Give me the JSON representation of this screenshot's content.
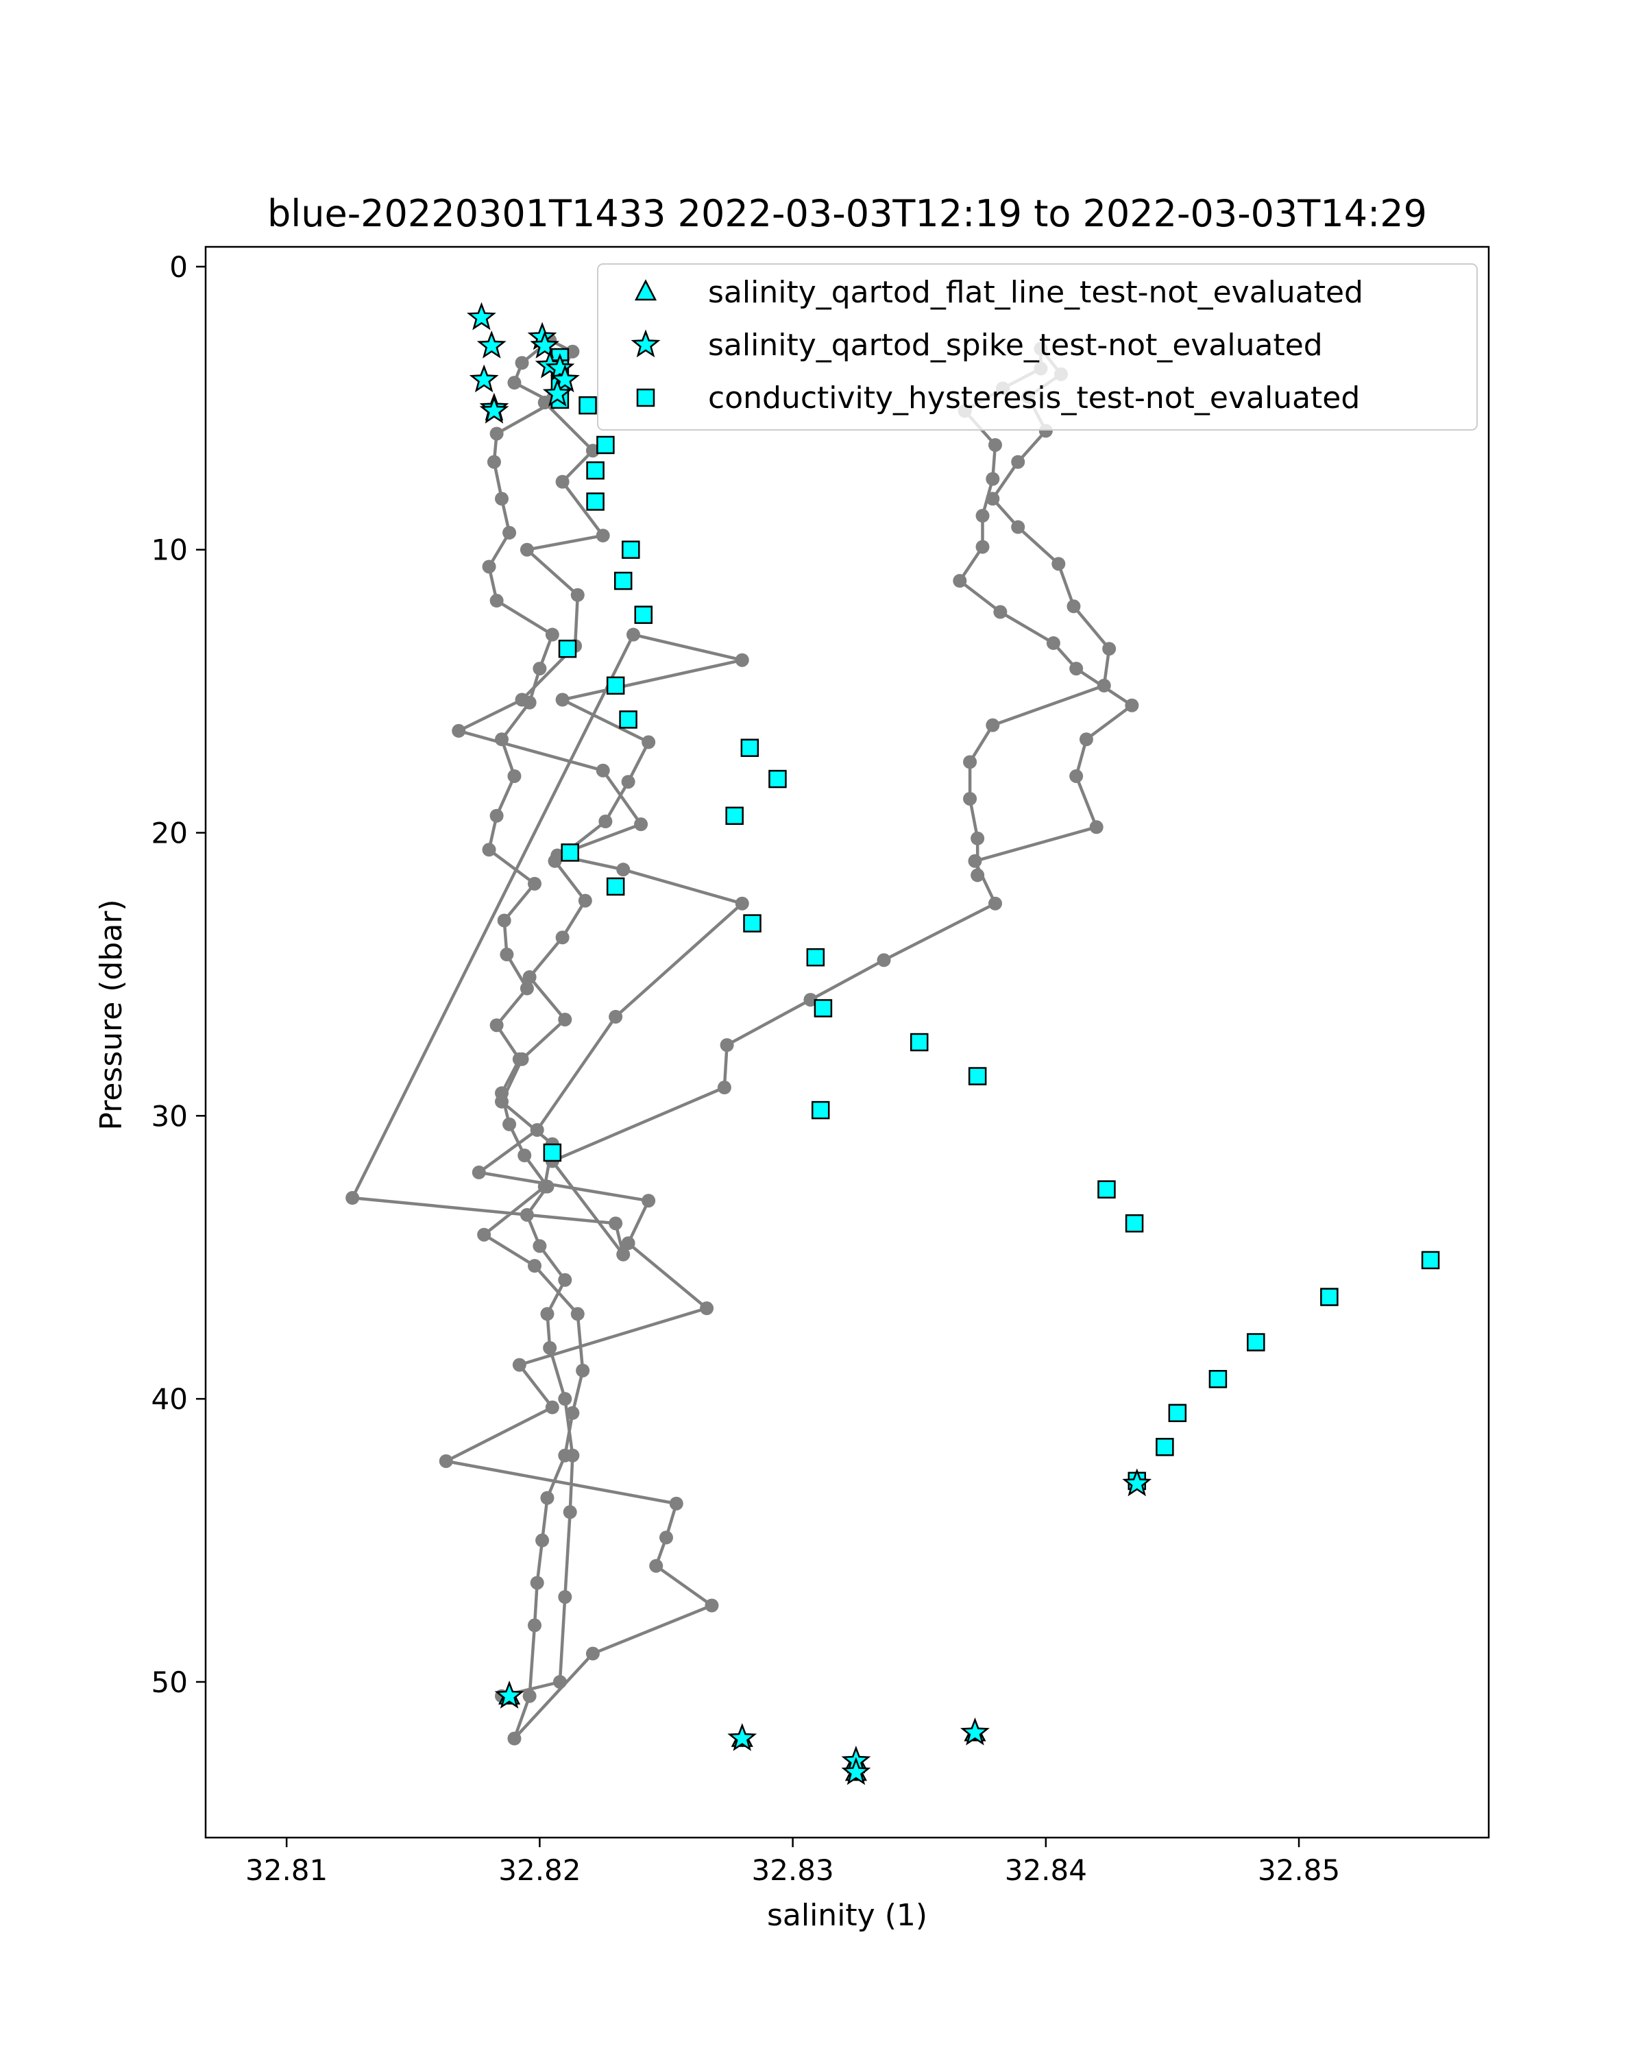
{
  "chart_data": {
    "type": "scatter",
    "title": "blue-20220301T1433 2022-03-03T12:19 to 2022-03-03T14:29",
    "xlabel": "salinity (1)",
    "ylabel": "Pressure (dbar)",
    "xlim": [
      32.8068,
      32.8575
    ],
    "ylim": [
      55.5,
      -0.7
    ],
    "y_inverted": true,
    "grid": false,
    "legend_position": "top-right",
    "colors": {
      "line": "#808080",
      "marker_fill": "#00ffff",
      "marker_edge": "#000000"
    },
    "xticks": [
      32.81,
      32.82,
      32.83,
      32.84,
      32.85
    ],
    "xtick_labels": [
      "32.81",
      "32.82",
      "32.83",
      "32.84",
      "32.85"
    ],
    "yticks": [
      0,
      10,
      20,
      30,
      40,
      50
    ],
    "ytick_labels": [
      "0",
      "10",
      "20",
      "30",
      "40",
      "50"
    ],
    "profile": {
      "x": [
        32.8185,
        32.8208,
        32.821,
        32.8212,
        32.8213,
        32.821,
        32.8204,
        32.8203,
        32.821,
        32.82,
        32.8195,
        32.8203,
        32.8194,
        32.8188,
        32.8185,
        32.8192,
        32.8183,
        32.8195,
        32.8187,
        32.8186,
        32.8198,
        32.818,
        32.8183,
        32.819,
        32.8185,
        32.8196,
        32.82,
        32.8205,
        32.8183,
        32.818,
        32.8188,
        32.8185,
        32.8182,
        32.8183,
        32.8205,
        32.819,
        32.8193,
        32.8204,
        32.8213,
        32.8202,
        32.8221,
        32.8209,
        32.8225,
        32.8195,
        32.8215,
        32.8214,
        32.8193,
        32.8168,
        32.8225,
        32.824,
        32.8207,
        32.8233,
        32.828,
        32.823,
        32.8199,
        32.8176,
        32.8243,
        32.8235,
        32.8266,
        32.8192,
        32.8205,
        32.8163,
        32.8254,
        32.825,
        32.8246,
        32.8268,
        32.8221,
        32.819,
        32.8196,
        32.8198,
        32.8199,
        32.8201,
        32.8203,
        32.821,
        32.8213,
        32.8217,
        32.8215,
        32.8198,
        32.8178,
        32.8202,
        32.8205,
        32.8185,
        32.8193,
        32.821,
        32.8196,
        32.8209,
        32.8218,
        32.8206,
        32.8226,
        32.8235,
        32.8243,
        32.8209,
        32.828,
        32.8237,
        32.8126,
        32.823,
        32.8233,
        32.8205,
        32.8273,
        32.8274,
        32.8307,
        32.8336,
        32.838,
        32.8372,
        32.842,
        32.8412,
        32.8416,
        32.8434,
        32.8412,
        32.8403,
        32.8382,
        32.8366,
        32.8375,
        32.8375,
        32.8379,
        32.838,
        32.8368,
        32.8383,
        32.8398,
        32.8398,
        32.8406,
        32.8393,
        32.84,
        32.8389,
        32.8379,
        32.8389,
        32.8405,
        32.8411,
        32.8425,
        32.8423,
        32.8379,
        32.837,
        32.837,
        32.8373,
        32.8373
      ],
      "y": [
        50.5,
        50.0,
        47.0,
        44.0,
        42.0,
        40.0,
        38.2,
        37.0,
        35.8,
        34.6,
        33.5,
        32.5,
        31.4,
        30.3,
        29.2,
        28.0,
        26.8,
        25.5,
        24.3,
        23.1,
        21.8,
        20.6,
        19.4,
        18.0,
        16.7,
        15.4,
        14.2,
        13.0,
        11.8,
        10.6,
        9.4,
        8.2,
        6.9,
        5.9,
        4.8,
        4.1,
        3.4,
        2.6,
        3.0,
        4.8,
        6.5,
        7.6,
        9.5,
        10.0,
        11.6,
        13.4,
        15.3,
        16.4,
        17.8,
        19.7,
        20.8,
        21.3,
        22.5,
        26.5,
        30.5,
        32.0,
        33.0,
        34.5,
        36.8,
        38.8,
        40.3,
        42.2,
        43.7,
        44.9,
        45.9,
        47.3,
        49.0,
        52.0,
        50.5,
        48.0,
        46.5,
        45.0,
        43.5,
        42.0,
        40.5,
        39.0,
        37.0,
        35.3,
        34.2,
        32.5,
        31.0,
        29.5,
        28.0,
        26.6,
        25.1,
        23.7,
        22.4,
        21.0,
        19.6,
        18.2,
        16.8,
        15.3,
        13.9,
        13.0,
        32.9,
        33.8,
        34.9,
        31.6,
        29.0,
        27.5,
        25.9,
        24.5,
        22.5,
        21.0,
        19.8,
        18.0,
        16.7,
        15.5,
        14.2,
        13.3,
        12.2,
        11.1,
        9.9,
        8.8,
        7.5,
        6.3,
        5.1,
        4.3,
        3.6,
        2.9,
        3.8,
        4.6,
        5.8,
        6.9,
        8.2,
        9.2,
        10.5,
        12.0,
        13.5,
        14.8,
        16.2,
        17.5,
        18.8,
        20.2,
        21.5
      ]
    },
    "series": [
      {
        "name": "salinity_qartod_flat_line_test-not_evaluated",
        "marker": "triangle",
        "x": [
          32.8188,
          32.828,
          32.8325,
          32.8325,
          32.8372
        ],
        "y": [
          50.5,
          52.0,
          52.8,
          53.2,
          51.8
        ]
      },
      {
        "name": "salinity_qartod_spike_test-not_evaluated",
        "marker": "star",
        "x": [
          32.8177,
          32.8181,
          32.8178,
          32.8182,
          32.8182,
          32.8201,
          32.8202,
          32.8204,
          32.8208,
          32.821,
          32.8207,
          32.8188,
          32.828,
          32.8325,
          32.8325,
          32.8372,
          32.8436
        ],
        "y": [
          1.8,
          2.8,
          4.0,
          5.0,
          5.1,
          2.5,
          2.8,
          3.5,
          3.6,
          4.0,
          4.5,
          50.5,
          52.0,
          52.8,
          53.2,
          51.8,
          43.0
        ]
      },
      {
        "name": "conductivity_hysteresis_test-not_evaluated",
        "marker": "square",
        "x": [
          32.8208,
          32.8208,
          32.8208,
          32.8208,
          32.8219,
          32.8226,
          32.8222,
          32.8222,
          32.8236,
          32.8233,
          32.8241,
          32.8211,
          32.823,
          32.8235,
          32.8283,
          32.8294,
          32.8277,
          32.8212,
          32.823,
          32.8284,
          32.8309,
          32.8312,
          32.835,
          32.8373,
          32.8311,
          32.8205,
          32.8424,
          32.8435,
          32.8552,
          32.8512,
          32.8483,
          32.8468,
          32.8452,
          32.8447,
          32.8436
        ],
        "y": [
          3.2,
          3.6,
          4.2,
          4.7,
          4.9,
          6.3,
          7.2,
          8.3,
          10.0,
          11.1,
          12.3,
          13.5,
          14.8,
          16.0,
          17.0,
          18.1,
          19.4,
          20.7,
          21.9,
          23.2,
          24.4,
          26.2,
          27.4,
          28.6,
          29.8,
          31.3,
          32.6,
          33.8,
          35.1,
          36.4,
          38.0,
          39.3,
          40.5,
          41.7,
          42.9
        ]
      }
    ]
  }
}
